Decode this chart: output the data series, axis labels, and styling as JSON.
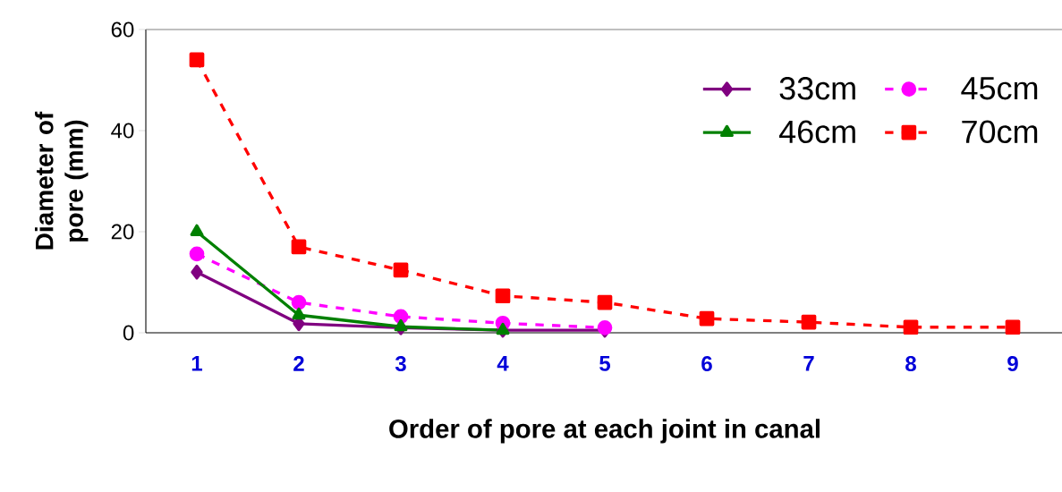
{
  "chart_data": {
    "type": "line",
    "xlabel": "Order of pore at each joint in canal",
    "ylabel": "Diameter of pore (mm)",
    "categories": [
      "1",
      "2",
      "3",
      "4",
      "5",
      "6",
      "7",
      "8",
      "9"
    ],
    "series": [
      {
        "name": "33cm",
        "color": "#800080",
        "marker": "diamond",
        "line_style": "solid",
        "values": [
          12,
          1.8,
          1,
          0.5,
          0.5,
          null,
          null,
          null,
          null
        ]
      },
      {
        "name": "45cm",
        "color": "#ff00ff",
        "marker": "circle",
        "line_style": "dashed",
        "values": [
          15.6,
          6,
          3.2,
          1.9,
          1,
          null,
          null,
          null,
          null
        ]
      },
      {
        "name": "46cm",
        "color": "#008000",
        "marker": "triangle",
        "line_style": "solid",
        "values": [
          20,
          3.5,
          1.2,
          0.5,
          null,
          null,
          null,
          null,
          null
        ]
      },
      {
        "name": "70cm",
        "color": "#ff0000",
        "marker": "square",
        "line_style": "dashed",
        "values": [
          54,
          17,
          12.4,
          7.3,
          6,
          2.8,
          2.1,
          1.1,
          1.1
        ]
      }
    ],
    "ylim": [
      0,
      60
    ],
    "yticks": [
      0,
      20,
      40,
      60
    ],
    "grid": false,
    "legend": "top right"
  }
}
